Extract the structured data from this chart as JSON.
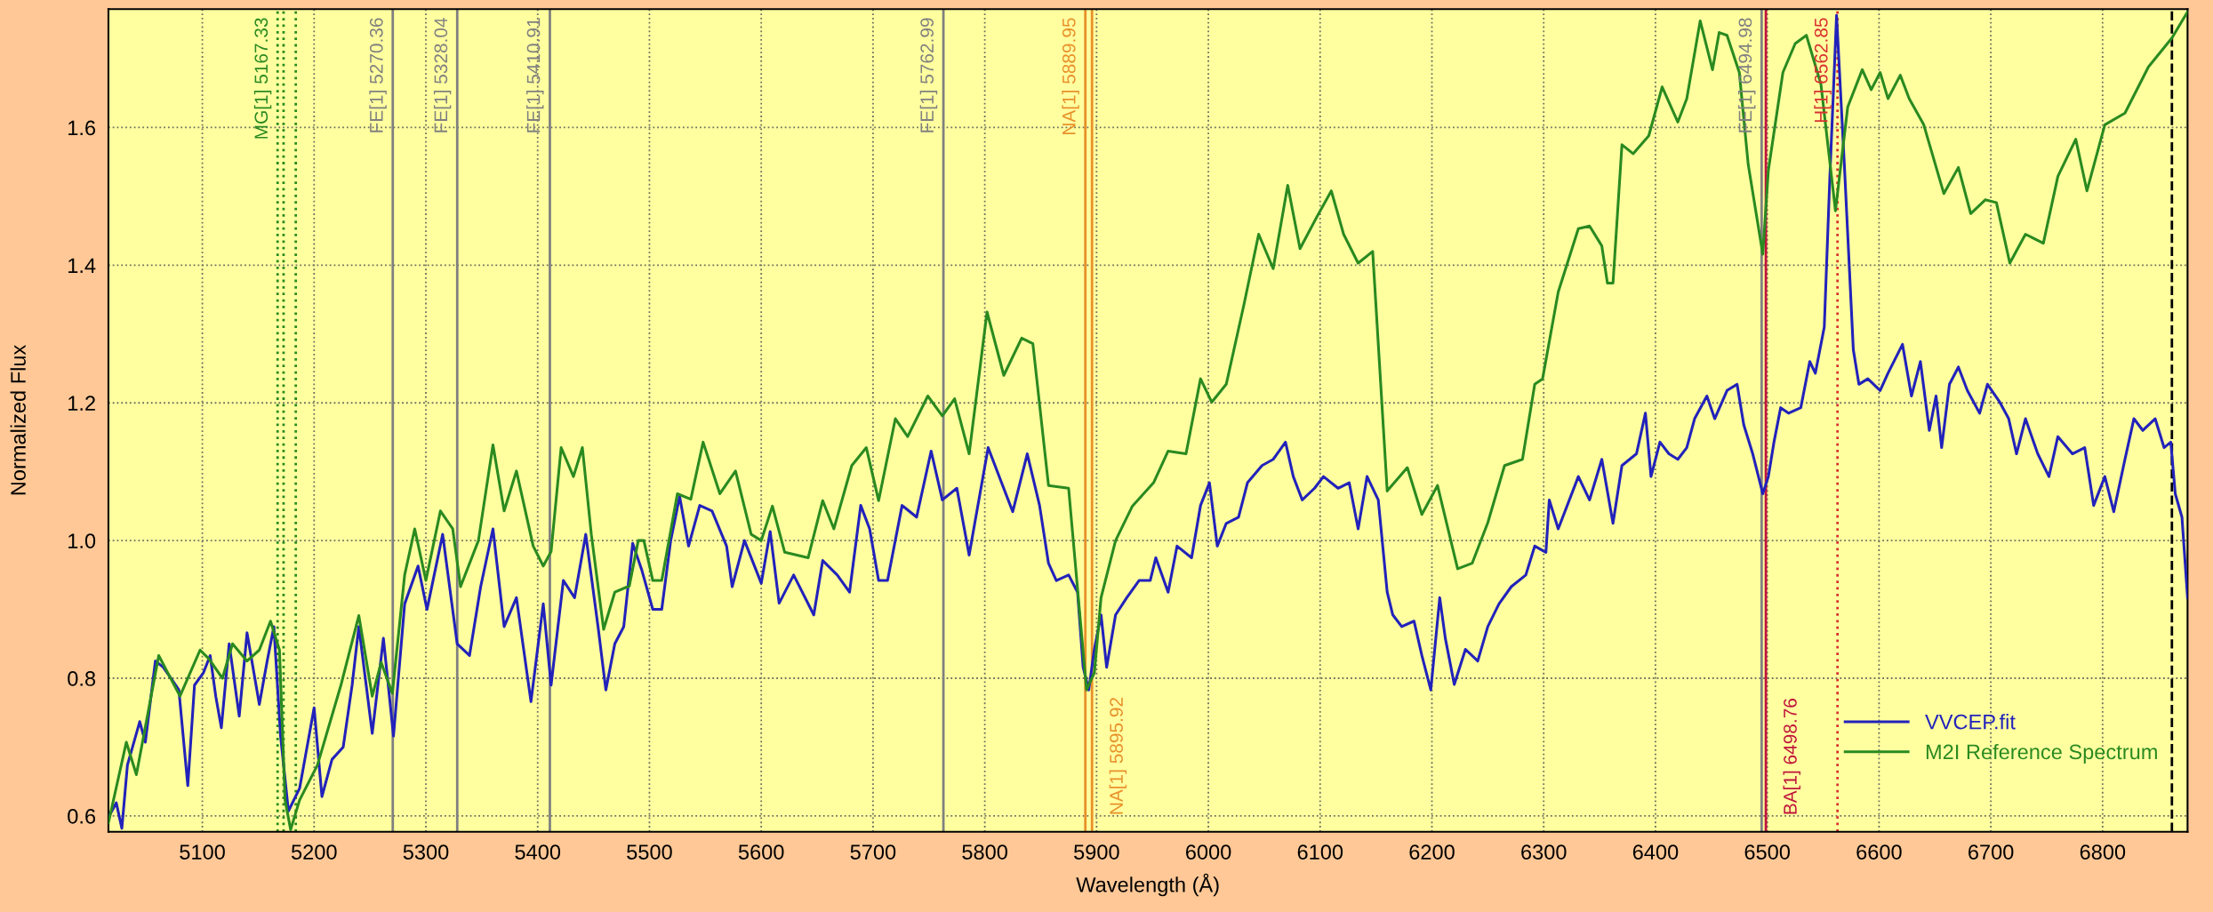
{
  "chart_data": {
    "type": "line",
    "xlabel": "Wavelength (Å)",
    "ylabel": "Normalized Flux",
    "xlim": [
      5016,
      6876
    ],
    "ylim": [
      0.577,
      1.772
    ],
    "xticks": [
      5100,
      5200,
      5300,
      5400,
      5500,
      5600,
      5700,
      5800,
      5900,
      6000,
      6100,
      6200,
      6300,
      6400,
      6500,
      6600,
      6700,
      6800
    ],
    "yticks": [
      {
        "value": 0.6,
        "label": "0.6"
      },
      {
        "value": 0.8,
        "label": "0.8"
      },
      {
        "value": 1.0,
        "label": "1.0"
      },
      {
        "value": 1.2,
        "label": "1.2"
      },
      {
        "value": 1.4,
        "label": "1.4"
      },
      {
        "value": 1.6,
        "label": "1.6"
      }
    ],
    "grid": true,
    "legend": "bottom right",
    "marker": "none",
    "line_style": "solid",
    "series": [
      {
        "name": "VVCEP.fit",
        "color": "#2222bb",
        "x": [
          5016,
          5023,
          5028,
          5033,
          5044,
          5049,
          5058,
          5065,
          5072,
          5079,
          5087,
          5093,
          5101,
          5107,
          5112,
          5117,
          5124,
          5133,
          5140,
          5151,
          5158,
          5164,
          5170,
          5177,
          5187,
          5200,
          5207,
          5216,
          5226,
          5234,
          5240,
          5252,
          5262,
          5271,
          5281,
          5293,
          5301,
          5315,
          5328,
          5339,
          5349,
          5360,
          5370,
          5381,
          5394,
          5405,
          5412,
          5423,
          5433,
          5443,
          5454,
          5461,
          5469,
          5477,
          5485,
          5493,
          5503,
          5511,
          5519,
          5527,
          5535,
          5545,
          5556,
          5569,
          5574,
          5585,
          5600,
          5608,
          5616,
          5629,
          5647,
          5655,
          5668,
          5679,
          5689,
          5697,
          5705,
          5713,
          5726,
          5739,
          5752,
          5762,
          5775,
          5786,
          5791,
          5803,
          5815,
          5825,
          5838,
          5849,
          5857,
          5864,
          5875,
          5883,
          5888,
          5893,
          5898,
          5904,
          5909,
          5917,
          5927,
          5938,
          5948,
          5953,
          5964,
          5972,
          5985,
          5993,
          6001,
          6008,
          6016,
          6027,
          6035,
          6048,
          6058,
          6069,
          6076,
          6084,
          6095,
          6103,
          6116,
          6126,
          6134,
          6142,
          6152,
          6160,
          6165,
          6173,
          6184,
          6191,
          6199,
          6207,
          6212,
          6220,
          6230,
          6241,
          6250,
          6260,
          6271,
          6284,
          6292,
          6302,
          6305,
          6313,
          6331,
          6341,
          6352,
          6362,
          6370,
          6383,
          6391,
          6396,
          6404,
          6412,
          6420,
          6428,
          6435,
          6446,
          6453,
          6464,
          6473,
          6479,
          6487,
          6496,
          6501,
          6506,
          6512,
          6519,
          6530,
          6538,
          6543,
          6551,
          6556,
          6562,
          6569,
          6577,
          6582,
          6590,
          6601,
          6608,
          6621,
          6629,
          6637,
          6645,
          6651,
          6656,
          6663,
          6671,
          6679,
          6690,
          6697,
          6708,
          6716,
          6723,
          6731,
          6742,
          6752,
          6760,
          6773,
          6784,
          6792,
          6802,
          6810,
          6820,
          6828,
          6836,
          6847,
          6855,
          6861,
          6865,
          6871,
          6876
        ],
        "values": [
          0.598,
          0.619,
          0.582,
          0.674,
          0.737,
          0.707,
          0.825,
          0.816,
          0.8,
          0.783,
          0.644,
          0.79,
          0.808,
          0.833,
          0.774,
          0.728,
          0.85,
          0.745,
          0.866,
          0.762,
          0.825,
          0.875,
          0.716,
          0.607,
          0.64,
          0.757,
          0.628,
          0.682,
          0.7,
          0.79,
          0.875,
          0.72,
          0.858,
          0.716,
          0.908,
          0.963,
          0.9,
          1.009,
          0.85,
          0.833,
          0.933,
          1.017,
          0.875,
          0.917,
          0.766,
          0.908,
          0.79,
          0.942,
          0.917,
          1.009,
          0.875,
          0.783,
          0.85,
          0.875,
          0.996,
          0.958,
          0.9,
          0.9,
          1.0,
          1.064,
          0.992,
          1.051,
          1.043,
          0.992,
          0.933,
          1.0,
          0.938,
          1.013,
          0.909,
          0.95,
          0.892,
          0.971,
          0.95,
          0.925,
          1.051,
          1.017,
          0.942,
          0.942,
          1.051,
          1.034,
          1.13,
          1.059,
          1.076,
          0.979,
          1.025,
          1.135,
          1.084,
          1.042,
          1.126,
          1.051,
          0.967,
          0.942,
          0.95,
          0.925,
          0.816,
          0.783,
          0.842,
          0.892,
          0.816,
          0.892,
          0.917,
          0.942,
          0.942,
          0.975,
          0.925,
          0.992,
          0.975,
          1.051,
          1.084,
          0.992,
          1.025,
          1.034,
          1.084,
          1.109,
          1.118,
          1.143,
          1.093,
          1.059,
          1.076,
          1.093,
          1.076,
          1.084,
          1.017,
          1.093,
          1.059,
          0.925,
          0.892,
          0.875,
          0.883,
          0.833,
          0.783,
          0.917,
          0.858,
          0.791,
          0.842,
          0.825,
          0.875,
          0.908,
          0.933,
          0.95,
          0.992,
          0.983,
          1.059,
          1.017,
          1.093,
          1.059,
          1.118,
          1.025,
          1.109,
          1.126,
          1.185,
          1.093,
          1.143,
          1.126,
          1.118,
          1.135,
          1.177,
          1.21,
          1.177,
          1.218,
          1.227,
          1.168,
          1.126,
          1.068,
          1.093,
          1.143,
          1.193,
          1.185,
          1.193,
          1.26,
          1.243,
          1.31,
          1.528,
          1.763,
          1.545,
          1.277,
          1.227,
          1.235,
          1.218,
          1.243,
          1.285,
          1.21,
          1.26,
          1.16,
          1.21,
          1.135,
          1.227,
          1.252,
          1.218,
          1.185,
          1.227,
          1.201,
          1.177,
          1.126,
          1.177,
          1.126,
          1.093,
          1.151,
          1.126,
          1.135,
          1.051,
          1.093,
          1.042,
          1.118,
          1.177,
          1.16,
          1.177,
          1.135,
          1.143,
          1.068,
          1.034,
          0.917
        ]
      },
      {
        "name": "M2I Reference Spectrum",
        "color": "#2a8a20",
        "x": [
          5016,
          5032,
          5041,
          5061,
          5080,
          5098,
          5106,
          5118,
          5127,
          5140,
          5151,
          5161,
          5169,
          5174,
          5179,
          5187,
          5203,
          5224,
          5240,
          5252,
          5260,
          5270,
          5281,
          5290,
          5300,
          5313,
          5324,
          5331,
          5347,
          5360,
          5370,
          5381,
          5396,
          5405,
          5412,
          5421,
          5432,
          5440,
          5448,
          5459,
          5469,
          5482,
          5490,
          5495,
          5503,
          5511,
          5525,
          5537,
          5548,
          5563,
          5577,
          5591,
          5600,
          5610,
          5621,
          5642,
          5655,
          5665,
          5681,
          5694,
          5705,
          5720,
          5731,
          5749,
          5762,
          5773,
          5786,
          5802,
          5817,
          5833,
          5843,
          5857,
          5875,
          5891,
          5898,
          5904,
          5917,
          5932,
          5951,
          5964,
          5980,
          5993,
          6003,
          6016,
          6032,
          6045,
          6058,
          6071,
          6082,
          6097,
          6110,
          6121,
          6134,
          6147,
          6160,
          6178,
          6191,
          6205,
          6223,
          6236,
          6250,
          6265,
          6281,
          6292,
          6299,
          6313,
          6331,
          6341,
          6352,
          6357,
          6362,
          6370,
          6380,
          6394,
          6406,
          6420,
          6428,
          6440,
          6451,
          6457,
          6464,
          6475,
          6483,
          6496,
          6501,
          6514,
          6525,
          6535,
          6548,
          6561,
          6572,
          6585,
          6593,
          6601,
          6608,
          6619,
          6627,
          6640,
          6658,
          6671,
          6682,
          6695,
          6705,
          6717,
          6731,
          6747,
          6760,
          6776,
          6786,
          6802,
          6820,
          6841,
          6862,
          6876
        ],
        "values": [
          0.59,
          0.707,
          0.66,
          0.833,
          0.774,
          0.841,
          0.828,
          0.8,
          0.85,
          0.825,
          0.841,
          0.883,
          0.841,
          0.623,
          0.58,
          0.623,
          0.674,
          0.79,
          0.891,
          0.774,
          0.823,
          0.778,
          0.95,
          1.017,
          0.942,
          1.043,
          1.017,
          0.933,
          1.0,
          1.139,
          1.043,
          1.101,
          0.992,
          0.963,
          0.984,
          1.135,
          1.093,
          1.135,
          1.009,
          0.871,
          0.925,
          0.934,
          1.0,
          1.0,
          0.942,
          0.942,
          1.068,
          1.06,
          1.143,
          1.068,
          1.101,
          1.009,
          1.0,
          1.05,
          0.983,
          0.975,
          1.058,
          1.017,
          1.109,
          1.135,
          1.058,
          1.177,
          1.151,
          1.21,
          1.181,
          1.206,
          1.126,
          1.332,
          1.24,
          1.294,
          1.286,
          1.08,
          1.076,
          0.783,
          0.808,
          0.917,
          1.0,
          1.05,
          1.084,
          1.13,
          1.126,
          1.235,
          1.201,
          1.227,
          1.344,
          1.445,
          1.395,
          1.516,
          1.424,
          1.47,
          1.508,
          1.445,
          1.403,
          1.42,
          1.072,
          1.106,
          1.038,
          1.08,
          0.959,
          0.967,
          1.026,
          1.109,
          1.118,
          1.227,
          1.235,
          1.361,
          1.453,
          1.457,
          1.428,
          1.374,
          1.374,
          1.575,
          1.562,
          1.588,
          1.659,
          1.608,
          1.642,
          1.755,
          1.684,
          1.738,
          1.734,
          1.68,
          1.546,
          1.416,
          1.538,
          1.68,
          1.722,
          1.734,
          1.663,
          1.479,
          1.63,
          1.684,
          1.655,
          1.68,
          1.642,
          1.676,
          1.642,
          1.604,
          1.504,
          1.542,
          1.475,
          1.495,
          1.491,
          1.403,
          1.445,
          1.432,
          1.529,
          1.583,
          1.508,
          1.604,
          1.621,
          1.688,
          1.73,
          1.768
        ]
      }
    ],
    "ref_lines": [
      {
        "axis": "x",
        "value": 5167.33,
        "label": "MG[1] 5167.33",
        "color": "#2a8a20",
        "line_style": "dotted"
      },
      {
        "axis": "x",
        "value": 5172.68,
        "label": null,
        "color": "#2a8a20",
        "line_style": "dotted"
      },
      {
        "axis": "x",
        "value": 5183.6,
        "label": null,
        "color": "#2a8a20",
        "line_style": "dotted"
      },
      {
        "axis": "x",
        "value": 5270.36,
        "label": "FE[1] 5270.36",
        "color": "#808080",
        "line_style": "solid"
      },
      {
        "axis": "x",
        "value": 5328.04,
        "label": "FE[1] 5328.04",
        "color": "#808080",
        "line_style": "solid"
      },
      {
        "axis": "x",
        "value": 5410.91,
        "label": "FE[1] 5410.91",
        "color": "#808080",
        "line_style": "solid"
      },
      {
        "axis": "x",
        "value": 5762.99,
        "label": "FE[1] 5762.99",
        "color": "#808080",
        "line_style": "solid"
      },
      {
        "axis": "x",
        "value": 5889.95,
        "label": "NA[1] 5889.95",
        "color": "#e8902a",
        "line_style": "solid"
      },
      {
        "axis": "x",
        "value": 5895.92,
        "label": "NA[1] 5895.92",
        "color": "#e8902a",
        "line_style": "solid"
      },
      {
        "axis": "x",
        "value": 6494.98,
        "label": "FE[1] 6494.98",
        "color": "#808080",
        "line_style": "solid"
      },
      {
        "axis": "x",
        "value": 6498.76,
        "label": "BA[1] 6498.76",
        "color": "#c0143c",
        "line_style": "solid"
      },
      {
        "axis": "x",
        "value": 6562.85,
        "label": "H[1] 6562.85",
        "color": "#d83030",
        "line_style": "dotted"
      },
      {
        "axis": "x",
        "value": 6862,
        "label": null,
        "color": "#000000",
        "line_style": "dashed"
      }
    ]
  }
}
